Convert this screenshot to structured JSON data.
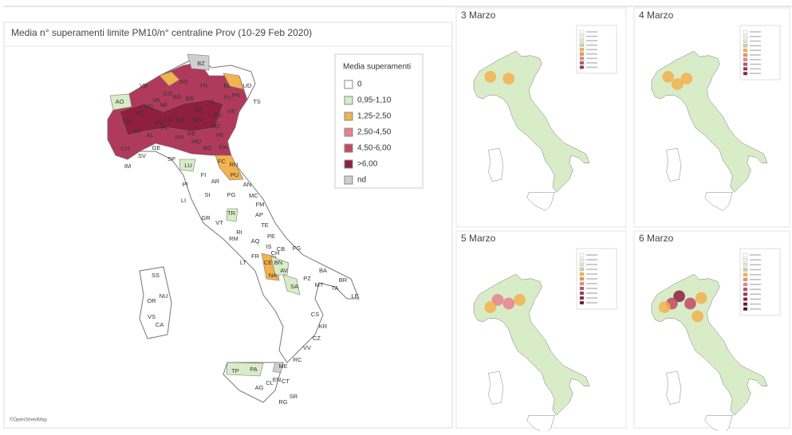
{
  "main": {
    "title": "Media n° superamenti limite PM10/n° centraline Prov (10-29 Feb 2020)",
    "legend": {
      "title": "Media superamenti",
      "items": [
        {
          "label": "0",
          "color": "#ffffff"
        },
        {
          "label": "0,95-1,10",
          "color": "#d9ecc8"
        },
        {
          "label": "1,25-2,50",
          "color": "#f2b24e"
        },
        {
          "label": "2,50-4,50",
          "color": "#e8808f"
        },
        {
          "label": "4,50-6,00",
          "color": "#c04a63"
        },
        {
          "label": ">6,00",
          "color": "#8e1f3f"
        },
        {
          "label": "nd",
          "color": "#cfcfcf"
        }
      ]
    },
    "credit": "©OpenStreetMap",
    "provinces": [
      "BZ",
      "TN",
      "BL",
      "UD",
      "PN",
      "TS",
      "SO",
      "BS",
      "BG",
      "CO",
      "VA",
      "NO",
      "MI",
      "VC",
      "TO",
      "AO",
      "VB",
      "LO",
      "CR",
      "MN",
      "VR",
      "VI",
      "TV",
      "PD",
      "VE",
      "RO",
      "FE",
      "BO",
      "RA",
      "PC",
      "PR",
      "RE",
      "MO",
      "AL",
      "AT",
      "PV",
      "CN",
      "GE",
      "SV",
      "IM",
      "SP",
      "LU",
      "FC",
      "RN",
      "PU",
      "AN",
      "MC",
      "FM",
      "AP",
      "TE",
      "PE",
      "CH",
      "AQ",
      "RI",
      "TR",
      "PG",
      "AR",
      "FI",
      "PI",
      "LI",
      "SI",
      "GR",
      "VT",
      "RM",
      "LT",
      "FR",
      "IS",
      "CB",
      "FG",
      "CE",
      "BN",
      "NA",
      "AV",
      "SA",
      "BA",
      "BR",
      "LE",
      "MT",
      "PZ",
      "TA",
      "CS",
      "KR",
      "CZ",
      "VV",
      "RC",
      "ME",
      "PA",
      "TP",
      "AG",
      "CL",
      "EN",
      "CT",
      "RG",
      "SR",
      "SS",
      "NU",
      "OR",
      "VS",
      "CA"
    ]
  },
  "panels": [
    {
      "title": "3 Marzo"
    },
    {
      "title": "4 Marzo"
    },
    {
      "title": "5 Marzo"
    },
    {
      "title": "6 Marzo"
    }
  ]
}
